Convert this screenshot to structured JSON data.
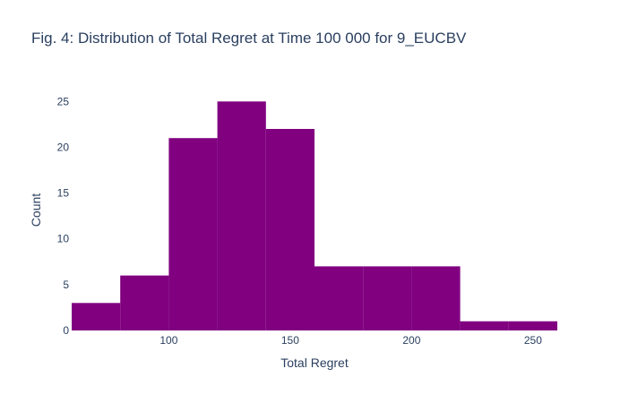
{
  "chart_data": {
    "type": "histogram",
    "title": "Fig. 4: Distribution of Total Regret at Time 100 000 for 9_EUCBV",
    "xlabel": "Total Regret",
    "ylabel": "Count",
    "bins": [
      {
        "start": 60,
        "end": 80,
        "count": 3
      },
      {
        "start": 80,
        "end": 100,
        "count": 6
      },
      {
        "start": 100,
        "end": 120,
        "count": 21
      },
      {
        "start": 120,
        "end": 140,
        "count": 25
      },
      {
        "start": 140,
        "end": 160,
        "count": 22
      },
      {
        "start": 160,
        "end": 180,
        "count": 7
      },
      {
        "start": 180,
        "end": 200,
        "count": 7
      },
      {
        "start": 200,
        "end": 220,
        "count": 7
      },
      {
        "start": 220,
        "end": 240,
        "count": 1
      },
      {
        "start": 240,
        "end": 260,
        "count": 1
      }
    ],
    "xlim": [
      60,
      260
    ],
    "ylim": [
      0,
      26.3
    ],
    "xticks": [
      100,
      150,
      200,
      250
    ],
    "yticks": [
      0,
      5,
      10,
      15,
      20,
      25
    ],
    "bar_color": "#800080",
    "grid": false,
    "legend": "none"
  },
  "colors": {
    "text": "#2a3f5f",
    "bar": "#800080"
  }
}
